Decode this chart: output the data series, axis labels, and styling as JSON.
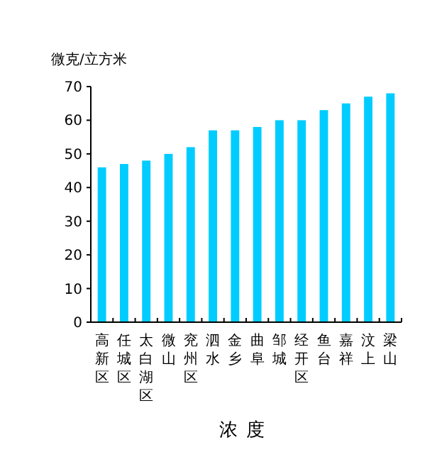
{
  "chart_data": {
    "type": "bar",
    "xlabel": "浓度",
    "ylabel": "微克/立方米",
    "categories": [
      "高新区",
      "任城区",
      "太白湖区",
      "微山",
      "兖州区",
      "泗水",
      "金乡",
      "曲阜",
      "邹城",
      "经开区",
      "鱼台",
      "嘉祥",
      "汶上",
      "梁山"
    ],
    "values": [
      46,
      47,
      48,
      50,
      52,
      57,
      57,
      58,
      60,
      60,
      63,
      65,
      67,
      68
    ],
    "color": "#00ccff",
    "ylim": [
      0,
      70
    ],
    "yticks": [
      0,
      10,
      20,
      30,
      40,
      50,
      60,
      70
    ],
    "grid": false
  }
}
